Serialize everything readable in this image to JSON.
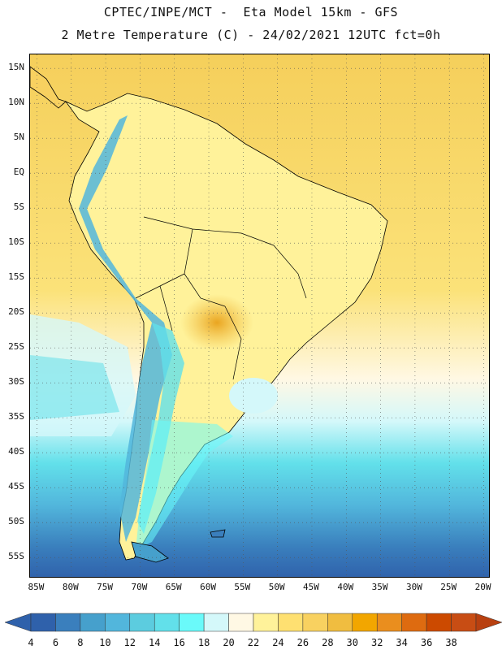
{
  "header": {
    "line1": "CPTEC/INPE/MCT -  Eta Model 15km - GFS",
    "line2": "2 Metre Temperature (C) - 24/02/2021 12UTC fct=0h"
  },
  "map": {
    "lat_labels": [
      "15N",
      "10N",
      "5N",
      "EQ",
      "5S",
      "10S",
      "15S",
      "20S",
      "25S",
      "30S",
      "35S",
      "40S",
      "45S",
      "50S",
      "55S"
    ],
    "lon_labels": [
      "85W",
      "80W",
      "75W",
      "70W",
      "65W",
      "60W",
      "55W",
      "50W",
      "45W",
      "40W",
      "35W",
      "30W",
      "25W",
      "20W"
    ],
    "lat_range": [
      17,
      -58
    ],
    "lon_range": [
      -86,
      -19
    ],
    "grid": "dotted"
  },
  "colorbar": {
    "labels": [
      "4",
      "6",
      "8",
      "10",
      "12",
      "14",
      "16",
      "18",
      "20",
      "22",
      "24",
      "26",
      "28",
      "30",
      "32",
      "34",
      "36",
      "38"
    ],
    "colors": [
      "#2f61ab",
      "#3a7fbd",
      "#46a0cc",
      "#52b6dc",
      "#5cccdf",
      "#62e0ea",
      "#6afafa",
      "#d4f8fa",
      "#fff8e4",
      "#fff29a",
      "#fee071",
      "#f8d160",
      "#f0bd40",
      "#f2a600",
      "#ea8e1e",
      "#de6b10",
      "#cc4a00",
      "#c84d14"
    ],
    "under_color": "#2f61ab",
    "over_color": "#b84010"
  }
}
